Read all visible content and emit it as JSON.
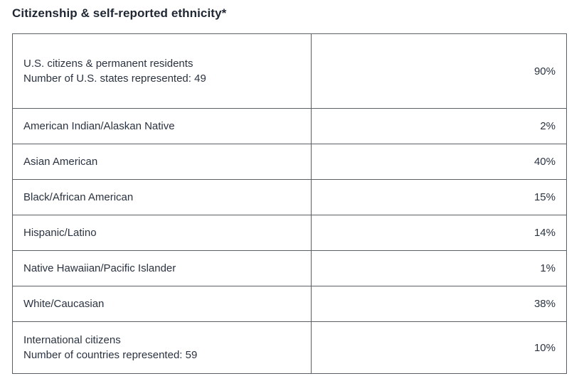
{
  "title": "Citizenship & self-reported ethnicity*",
  "rows": [
    {
      "label": "U.S. citizens & permanent residents",
      "sublabel": "Number of U.S. states represented: 49",
      "value": "90%"
    },
    {
      "label": "American Indian/Alaskan Native",
      "value": "2%"
    },
    {
      "label": "Asian American",
      "value": "40%"
    },
    {
      "label": "Black/African American",
      "value": "15%"
    },
    {
      "label": "Hispanic/Latino",
      "value": "14%"
    },
    {
      "label": "Native Hawaiian/Pacific Islander",
      "value": "1%"
    },
    {
      "label": "White/Caucasian",
      "value": "38%"
    },
    {
      "label": "International citizens",
      "sublabel": "Number of countries represented: 59",
      "value": "10%"
    }
  ]
}
